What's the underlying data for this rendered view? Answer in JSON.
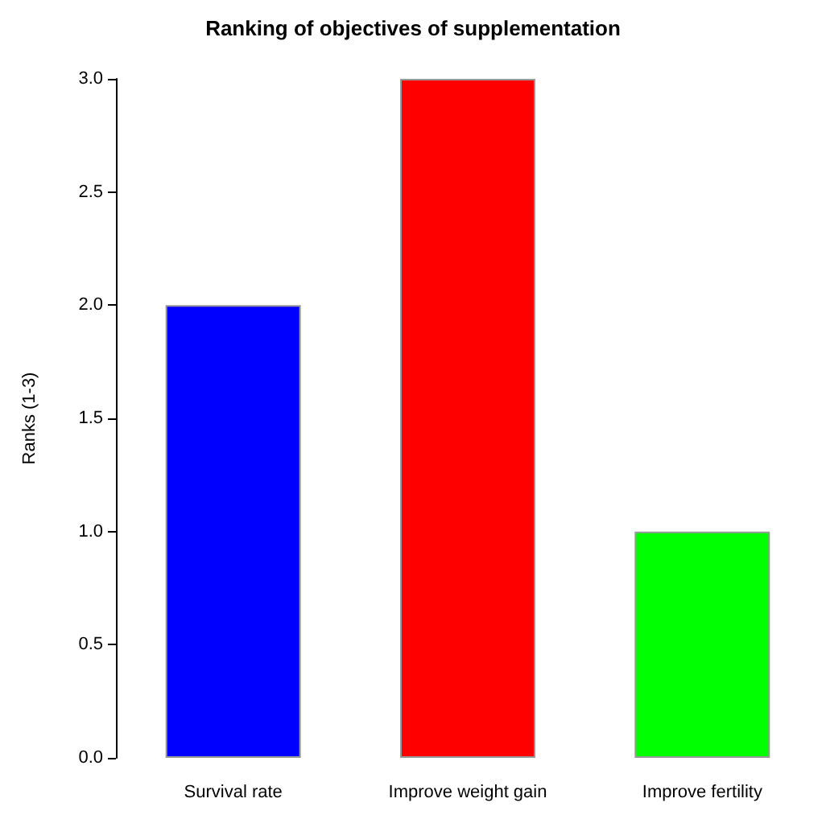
{
  "chart_data": {
    "type": "bar",
    "title": "Ranking of objectives of supplementation",
    "ylabel": "Ranks (1-3)",
    "categories": [
      "Survival rate",
      "Improve weight gain",
      "Improve fertility"
    ],
    "values": [
      2,
      3,
      1
    ],
    "colors": [
      "#0000ff",
      "#ff0000",
      "#00ff00"
    ],
    "ylim": [
      0,
      3
    ],
    "yticks": [
      {
        "value": 0,
        "label": "0.0"
      },
      {
        "value": 0.5,
        "label": "0.5"
      },
      {
        "value": 1,
        "label": "1.0"
      },
      {
        "value": 1.5,
        "label": "1.5"
      },
      {
        "value": 2,
        "label": "2.0"
      },
      {
        "value": 2.5,
        "label": "2.5"
      },
      {
        "value": 3,
        "label": "3.0"
      }
    ],
    "data_labels": false
  }
}
